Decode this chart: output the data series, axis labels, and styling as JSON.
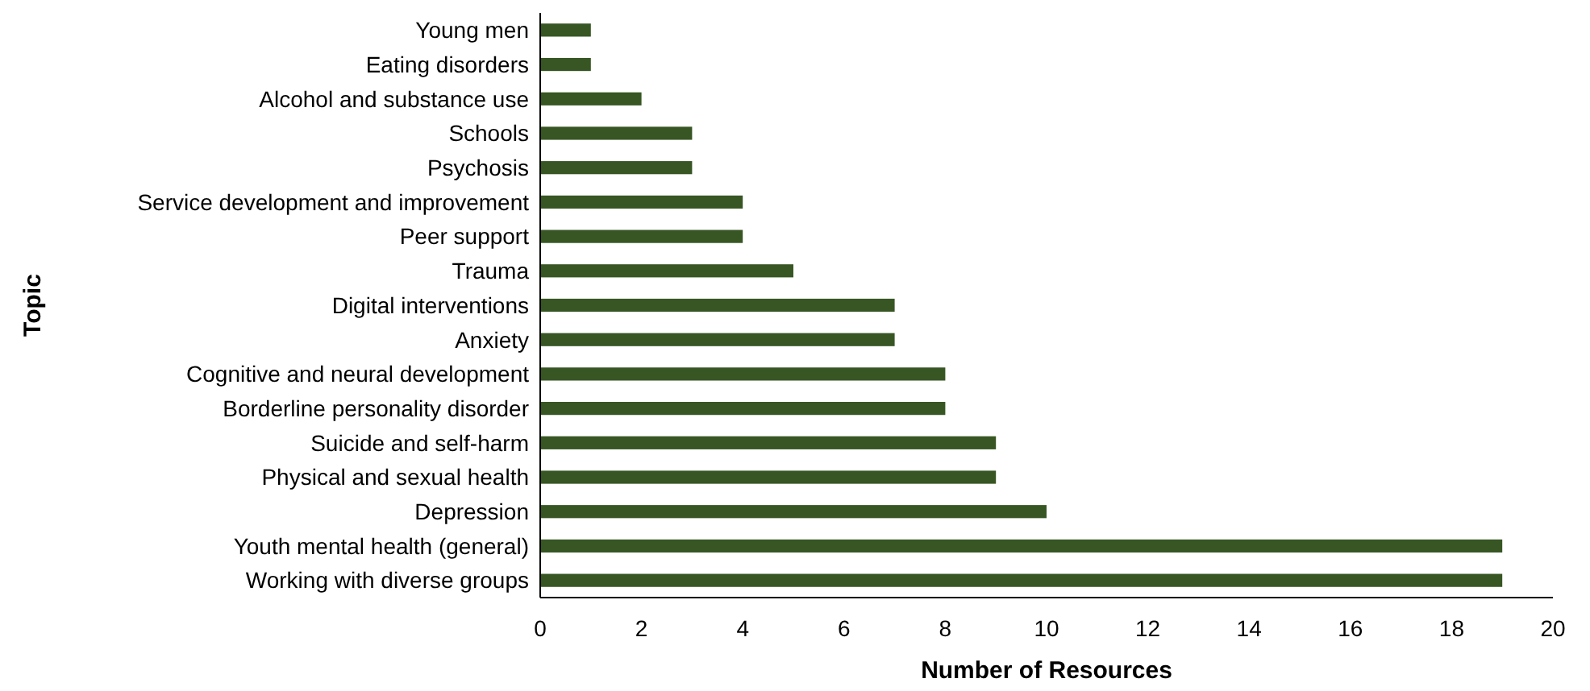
{
  "chart_data": {
    "type": "bar",
    "orientation": "horizontal",
    "xlabel": "Number of Resources",
    "ylabel": "Topic",
    "categories": [
      "Young men",
      "Eating disorders",
      "Alcohol and substance use",
      "Schools ",
      "Psychosis",
      "Service development and improvement",
      "Peer support",
      "Trauma",
      "Digital interventions",
      "Anxiety",
      "Cognitive and neural development",
      "Borderline personality disorder",
      "Suicide and self-harm",
      "Physical and sexual health",
      "Depression",
      "Youth mental health (general)",
      "Working with diverse groups"
    ],
    "values": [
      1,
      1,
      2,
      3,
      3,
      4,
      4,
      5,
      7,
      7,
      8,
      8,
      9,
      9,
      10,
      19,
      19
    ],
    "color": "#375623",
    "xlim": [
      0,
      20
    ],
    "xticks": [
      0,
      2,
      4,
      6,
      8,
      10,
      12,
      14,
      16,
      18,
      20
    ],
    "grid": false
  }
}
